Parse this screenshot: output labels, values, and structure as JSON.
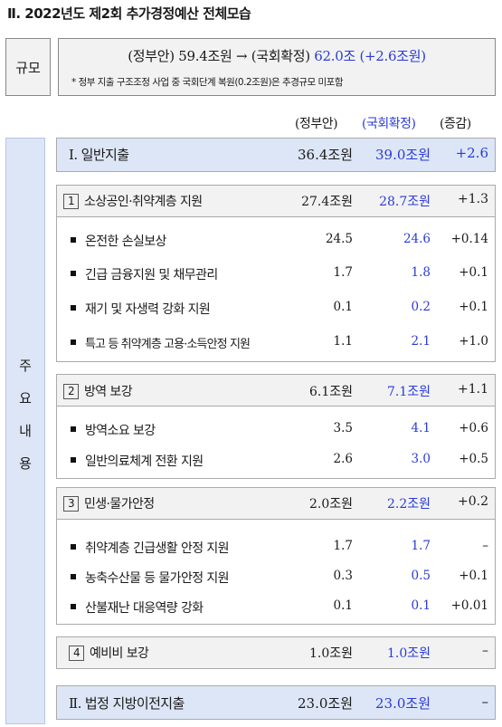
{
  "title": "Ⅱ. 2022년도 제2회 추가경정예산 전체모습",
  "scale": {
    "label": "규모",
    "gov_label": "(정부안) 59.4조원 →",
    "conf_label": "(국회확정)",
    "conf_value": "62.0조 (+2.6조원)",
    "note": "* 정부 지출 구조조정 사업 중 국회단계 복원(0.2조원)은 추경규모 미포함"
  },
  "columns": {
    "gov": "(정부안)",
    "conf": "(국회확정)",
    "diff": "(증감)"
  },
  "side_label": [
    "주",
    "요",
    "내",
    "용"
  ],
  "colors": {
    "blue_text": "#2a3ad8",
    "band_bg": "#dde6f6",
    "gray_bg": "#f2f2f2"
  },
  "general": {
    "label": "Ⅰ. 일반지출",
    "gov": "36.4조원",
    "conf": "39.0조원",
    "diff": "+2.6"
  },
  "group1": {
    "num": "1",
    "label": "소상공인·취약계층 지원",
    "gov": "27.4조원",
    "conf": "28.7조원",
    "diff": "+1.3",
    "items": [
      {
        "label": "온전한 손실보상",
        "gov": "24.5",
        "conf": "24.6",
        "diff": "+0.14"
      },
      {
        "label": "긴급 금융지원 및 채무관리",
        "gov": "1.7",
        "conf": "1.8",
        "diff": "+0.1"
      },
      {
        "label": "재기 및 자생력 강화 지원",
        "gov": "0.1",
        "conf": "0.2",
        "diff": "+0.1"
      },
      {
        "label": "특고 등 취약계층 고용·소득안정 지원",
        "gov": "1.1",
        "conf": "2.1",
        "diff": "+1.0"
      }
    ]
  },
  "group2": {
    "num": "2",
    "label": "방역 보강",
    "gov": "6.1조원",
    "conf": "7.1조원",
    "diff": "+1.1",
    "items": [
      {
        "label": "방역소요 보강",
        "gov": "3.5",
        "conf": "4.1",
        "diff": "+0.6"
      },
      {
        "label": "일반의료체계 전환 지원",
        "gov": "2.6",
        "conf": "3.0",
        "diff": "+0.5"
      }
    ]
  },
  "group3": {
    "num": "3",
    "label": "민생·물가안정",
    "gov": "2.0조원",
    "conf": "2.2조원",
    "diff": "+0.2",
    "items": [
      {
        "label": "취약계층 긴급생활 안정 지원",
        "gov": "1.7",
        "conf": "1.7",
        "diff": "–"
      },
      {
        "label": "농축수산물 등 물가안정 지원",
        "gov": "0.3",
        "conf": "0.5",
        "diff": "+0.1"
      },
      {
        "label": "산불재난 대응역량 강화",
        "gov": "0.1",
        "conf": "0.1",
        "diff": "+0.01"
      }
    ]
  },
  "group4": {
    "num": "4",
    "label": "예비비 보강",
    "gov": "1.0조원",
    "conf": "1.0조원",
    "diff": "–"
  },
  "transfer": {
    "label": "Ⅱ. 법정 지방이전지출",
    "gov": "23.0조원",
    "conf": "23.0조원",
    "diff": "–"
  }
}
